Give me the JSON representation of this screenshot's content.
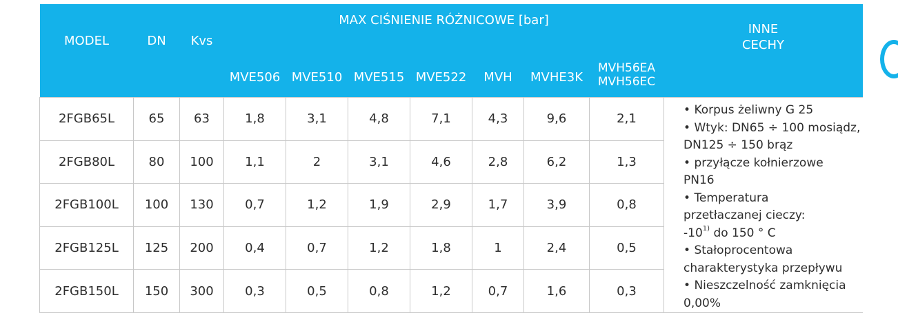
{
  "header": {
    "model": "MODEL",
    "dn": "DN",
    "kvs": "Kvs",
    "group": "MAX CIŚNIENIE RÓŻNICOWE [bar]",
    "inne_line1": "INNE",
    "inne_line2": "CECHY",
    "sub": [
      "MVE506",
      "MVE510",
      "MVE515",
      "MVE522",
      "MVH",
      "MVHE3K"
    ],
    "last_sub_line1": "MVH56EA",
    "last_sub_line2": "MVH56EC"
  },
  "rows": [
    {
      "model": "2FGB65L",
      "dn": "65",
      "kvs": "63",
      "vals": [
        "1,8",
        "3,1",
        "4,8",
        "7,1",
        "4,3",
        "9,6",
        "2,1"
      ]
    },
    {
      "model": "2FGB80L",
      "dn": "80",
      "kvs": "100",
      "vals": [
        "1,1",
        "2",
        "3,1",
        "4,6",
        "2,8",
        "6,2",
        "1,3"
      ]
    },
    {
      "model": "2FGB100L",
      "dn": "100",
      "kvs": "130",
      "vals": [
        "0,7",
        "1,2",
        "1,9",
        "2,9",
        "1,7",
        "3,9",
        "0,8"
      ]
    },
    {
      "model": "2FGB125L",
      "dn": "125",
      "kvs": "200",
      "vals": [
        "0,4",
        "0,7",
        "1,2",
        "1,8",
        "1",
        "2,4",
        "0,5"
      ]
    },
    {
      "model": "2FGB150L",
      "dn": "150",
      "kvs": "300",
      "vals": [
        "0,3",
        "0,5",
        "0,8",
        "1,2",
        "0,7",
        "1,6",
        "0,3"
      ]
    }
  ],
  "features": {
    "l1": "Korpus żeliwny G 25",
    "l2": "Wtyk: DN65 ÷ 100 mosiądz,",
    "l3": "DN125 ÷ 150 brąz",
    "l4": "przyłącze kołnierzowe",
    "l5": "PN16",
    "l6": "Temperatura",
    "l7": "przetłaczanej cieczy:",
    "l8a": "-10",
    "l8sup": "1)",
    "l8b": " do 150 ° C",
    "l9": "Stałoprocentowa",
    "l10": "charakterystyka przepływu",
    "l11": "Nieszczelność zamknięcia",
    "l12": "0,00%"
  },
  "colors": {
    "header_bg": "#14b2ea",
    "header_text": "#ffffff",
    "grid": "#c8c8c8"
  }
}
